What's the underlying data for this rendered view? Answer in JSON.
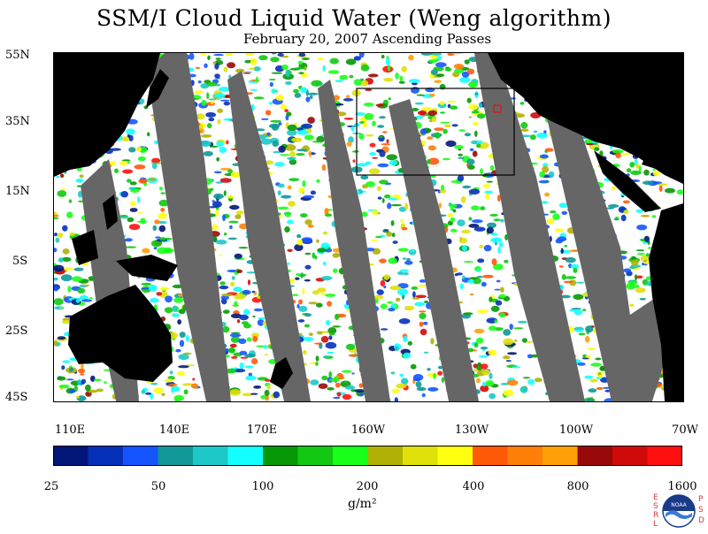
{
  "title": "SSM/I Cloud Liquid Water (Weng algorithm)",
  "subtitle": "February 20, 2007  Ascending Passes",
  "latitude_labels": [
    "55N",
    "35N",
    "15N",
    "5S",
    "25S",
    "45S"
  ],
  "longitude_labels": [
    "110E",
    "140E",
    "170E",
    "160W",
    "130W",
    "100W",
    "70W"
  ],
  "colorbar": {
    "tick_labels": [
      "25",
      "50",
      "100",
      "200",
      "400",
      "800",
      "1600"
    ],
    "colors": [
      "#021677",
      "#0531b8",
      "#1455ff",
      "#109898",
      "#1cc8c8",
      "#14ffff",
      "#069806",
      "#12c812",
      "#1aff1a",
      "#b0b006",
      "#e0e00a",
      "#ffff10",
      "#ff5a08",
      "#ff8008",
      "#ffa008",
      "#980a0a",
      "#d00a0a",
      "#ff1010"
    ]
  },
  "units_label": "g/m²",
  "logo": {
    "name": "NOAA",
    "left_letters": [
      "E",
      "S",
      "R",
      "L"
    ],
    "right_letters": [
      "P",
      "S",
      "D"
    ]
  },
  "colors": {
    "land": "#000000",
    "missing_swath_gap": "#666666",
    "no_cloud": "#ffffff",
    "region_box": "#000000",
    "marker": "#ff0000"
  }
}
